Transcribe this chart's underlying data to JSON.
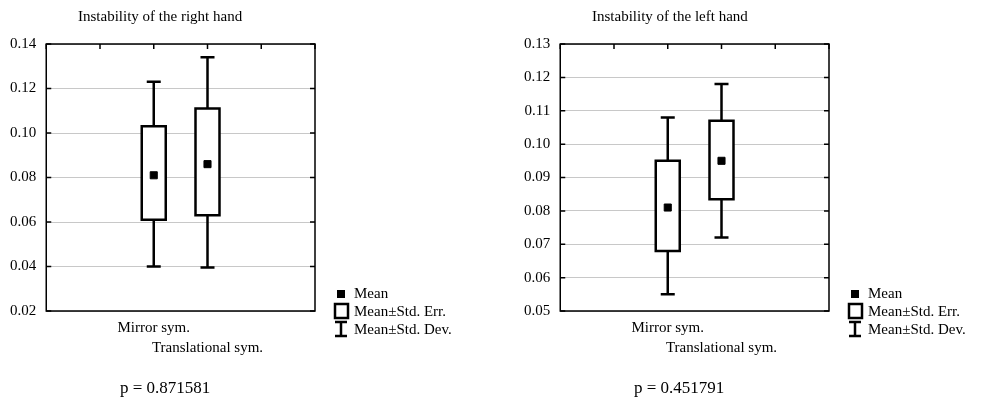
{
  "chart_data": [
    {
      "type": "box",
      "title": "Instability of the right hand",
      "categories": [
        "Mirror sym.",
        "Translational sym."
      ],
      "boxes": [
        {
          "low": 0.04,
          "q1": 0.061,
          "q3": 0.103,
          "high": 0.123,
          "mean": 0.081
        },
        {
          "low": 0.0395,
          "q1": 0.063,
          "q3": 0.111,
          "high": 0.134,
          "mean": 0.086
        }
      ],
      "ylim": [
        0.02,
        0.14
      ],
      "yticks": [
        0.02,
        0.04,
        0.06,
        0.08,
        {
          "value": 0.1,
          "label": "0.10"
        },
        0.12,
        0.14
      ],
      "grid": "y",
      "annotations": [
        "p = 0.871581",
        "Mean",
        "Mean±Std. Err.",
        "Mean±Std. Dev."
      ]
    },
    {
      "type": "box",
      "title": "Instability of the left hand",
      "categories": [
        "Mirror sym.",
        "Translational sym."
      ],
      "boxes": [
        {
          "low": 0.055,
          "q1": 0.068,
          "q3": 0.095,
          "high": 0.108,
          "mean": 0.081
        },
        {
          "low": 0.072,
          "q1": 0.0835,
          "q3": 0.107,
          "high": 0.118,
          "mean": 0.095
        }
      ],
      "ylim": [
        0.05,
        0.13
      ],
      "yticks": [
        0.05,
        0.06,
        0.07,
        0.08,
        0.09,
        {
          "value": 0.1,
          "label": "0.10"
        },
        0.11,
        0.12,
        0.13
      ],
      "grid": "y",
      "annotations": [
        "p = 0.451791",
        "Mean",
        "Mean±Std. Err.",
        "Mean±Std. Dev."
      ]
    }
  ]
}
